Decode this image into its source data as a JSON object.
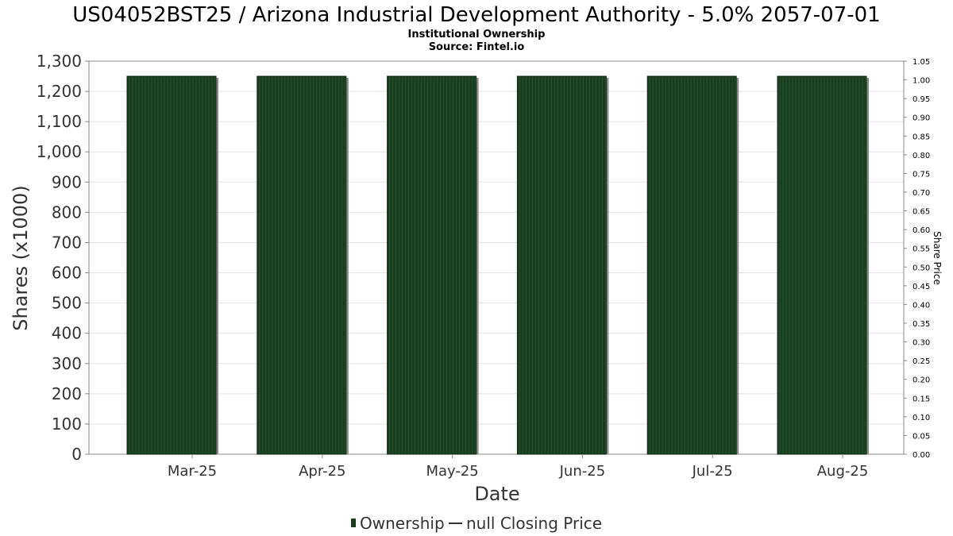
{
  "chart_data": {
    "type": "bar",
    "title": "US04052BST25 / Arizona Industrial Development Authority - 5.0% 2057-07-01",
    "subtitle_line1": "Institutional Ownership",
    "subtitle_line2": "Source: Fintel.io",
    "xlabel": "Date",
    "ylabel": "Shares (x1000)",
    "y2label": "Share Price",
    "categories": [
      "Mar-25",
      "Apr-25",
      "May-25",
      "Jun-25",
      "Jul-25",
      "Aug-25"
    ],
    "series": [
      {
        "name": "Ownership",
        "color": "#1a3d1f",
        "values": [
          1250,
          1250,
          1250,
          1250,
          1250,
          1250
        ]
      }
    ],
    "ylim": [
      0,
      1300
    ],
    "yticks": [
      0,
      100,
      200,
      300,
      400,
      500,
      600,
      700,
      800,
      900,
      1000,
      1100,
      1200,
      1300
    ],
    "ytick_labels": [
      "0",
      "100",
      "200",
      "300",
      "400",
      "500",
      "600",
      "700",
      "800",
      "900",
      "1,000",
      "1,100",
      "1,200",
      "1,300"
    ],
    "y2lim": [
      0,
      1.05
    ],
    "y2ticks": [
      "0.00",
      "0.05",
      "0.10",
      "0.15",
      "0.20",
      "0.25",
      "0.30",
      "0.35",
      "0.40",
      "0.45",
      "0.50",
      "0.55",
      "0.60",
      "0.65",
      "0.70",
      "0.75",
      "0.80",
      "0.85",
      "0.90",
      "0.95",
      "1.00",
      "1.05"
    ],
    "grid": true,
    "legend": {
      "placement": "bottom-center",
      "items": [
        {
          "label": "Ownership",
          "marker": "bar"
        },
        {
          "label": "null Closing Price",
          "marker": "line"
        }
      ]
    }
  }
}
